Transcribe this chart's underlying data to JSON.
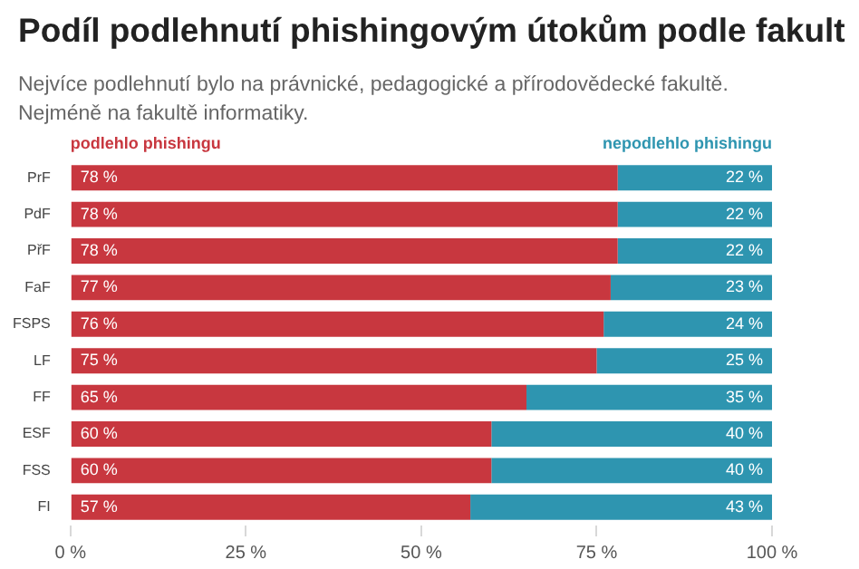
{
  "chart_data": {
    "type": "bar",
    "orientation": "horizontal",
    "stacked": true,
    "title": "Podíl podlehnutí phishingovým útokům podle fakult",
    "subtitle": "Nejvíce podlehnutí bylo na právnické, pedagogické a přírodovědecké fakultě. Nejméně na fakultě informatiky.",
    "categories": [
      "PrF",
      "PdF",
      "PřF",
      "FaF",
      "FSPS",
      "LF",
      "FF",
      "ESF",
      "FSS",
      "FI"
    ],
    "series": [
      {
        "name": "podlehlo phishingu",
        "color": "#c8373f",
        "values": [
          78,
          78,
          78,
          77,
          76,
          75,
          65,
          60,
          60,
          57
        ],
        "value_labels": [
          "78 %",
          "78 %",
          "78 %",
          "77 %",
          "76 %",
          "75 %",
          "65 %",
          "60 %",
          "60 %",
          "57 %"
        ]
      },
      {
        "name": "nepodlehlo phishingu",
        "color": "#2e95b0",
        "values": [
          22,
          22,
          22,
          23,
          24,
          25,
          35,
          40,
          40,
          43
        ],
        "value_labels": [
          "22 %",
          "22 %",
          "22 %",
          "23 %",
          "24 %",
          "25 %",
          "35 %",
          "40 %",
          "40 %",
          "43 %"
        ]
      }
    ],
    "xlim": [
      0,
      100
    ],
    "xticks": [
      {
        "value": 0,
        "label": "0 %"
      },
      {
        "value": 25,
        "label": "25 %"
      },
      {
        "value": 50,
        "label": "50 %"
      },
      {
        "value": 75,
        "label": "75 %"
      },
      {
        "value": 100,
        "label": "100 %"
      }
    ],
    "grid": false,
    "legend": "top"
  }
}
